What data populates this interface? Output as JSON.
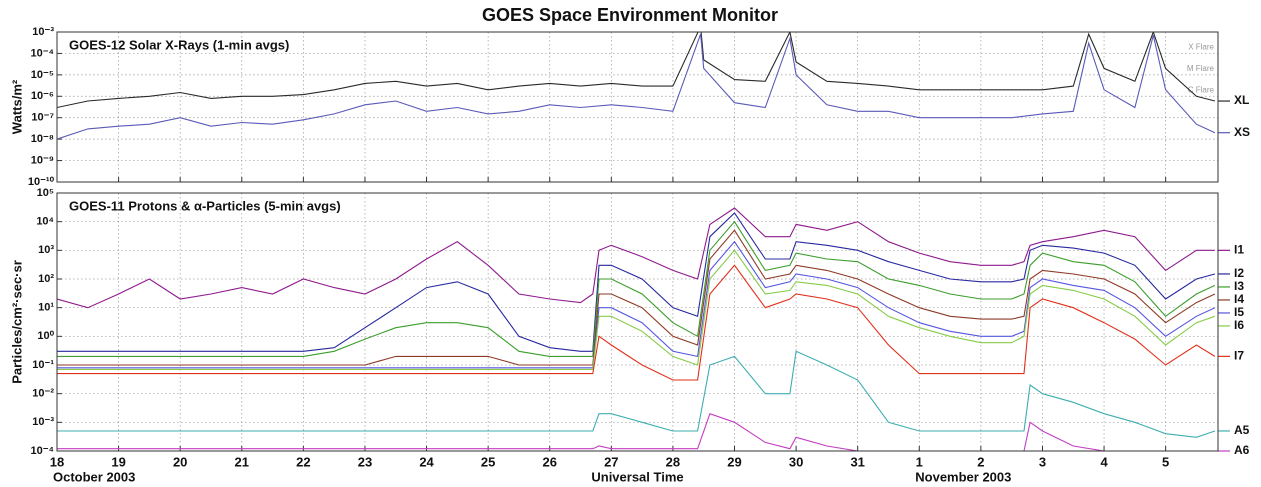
{
  "title": "GOES Space Environment Monitor",
  "chart_data": [
    {
      "type": "line",
      "subtitle": "GOES-12 Solar X-Rays (1-min avgs)",
      "ylabel": "Watts/m²",
      "yscale": "log",
      "grid": true,
      "xlim": [
        0,
        18.85
      ],
      "xticks": [
        0,
        1,
        2,
        3,
        4,
        5,
        6,
        7,
        8,
        9,
        10,
        11,
        12,
        13,
        14,
        15,
        16,
        17,
        18
      ],
      "ylim": [
        1e-10,
        0.001
      ],
      "yticks": [
        {
          "value": 0.001,
          "label": "10⁻³"
        },
        {
          "value": 0.0001,
          "label": "10⁻⁴"
        },
        {
          "value": 1e-05,
          "label": "10⁻⁵"
        },
        {
          "value": 1e-06,
          "label": "10⁻⁶"
        },
        {
          "value": 1e-07,
          "label": "10⁻⁷"
        },
        {
          "value": 1e-08,
          "label": "10⁻⁸"
        },
        {
          "value": 1e-09,
          "label": "10⁻⁹"
        },
        {
          "value": 1e-10,
          "label": "10⁻¹⁰"
        }
      ],
      "levels": [
        {
          "label": "X Flare",
          "value": 0.0001
        },
        {
          "label": "M Flare",
          "value": 1e-05
        },
        {
          "label": "C Flare",
          "value": 1e-06
        }
      ],
      "x": [
        0,
        0.5,
        1,
        1.5,
        2,
        2.5,
        3,
        3.5,
        4,
        4.5,
        5,
        5.5,
        6,
        6.5,
        7,
        7.5,
        8,
        8.5,
        9,
        9.5,
        10,
        10.45,
        10.5,
        11,
        11.5,
        11.9,
        12,
        12.5,
        13,
        13.5,
        14,
        14.5,
        15,
        15.5,
        16,
        16.5,
        16.75,
        17,
        17.5,
        17.8,
        18,
        18.5,
        18.8
      ],
      "series": [
        {
          "name": "XL",
          "color": "#2a2a2a",
          "values": [
            3e-07,
            6e-07,
            8e-07,
            1e-06,
            1.5e-06,
            8e-07,
            1e-06,
            1e-06,
            1.2e-06,
            2e-06,
            4e-06,
            5e-06,
            3e-06,
            4e-06,
            2e-06,
            3e-06,
            4e-06,
            3e-06,
            4e-06,
            3e-06,
            3e-06,
            0.0018,
            5e-05,
            6e-06,
            5e-06,
            0.001,
            4e-05,
            5e-06,
            4e-06,
            3e-06,
            2e-06,
            2e-06,
            2e-06,
            2e-06,
            2e-06,
            3e-06,
            0.0008,
            2e-05,
            5e-06,
            0.001,
            2e-05,
            1e-06,
            6e-07
          ]
        },
        {
          "name": "XS",
          "color": "#5a5ab8",
          "values": [
            1e-08,
            3e-08,
            4e-08,
            5e-08,
            1e-07,
            4e-08,
            6e-08,
            5e-08,
            8e-08,
            1.5e-07,
            4e-07,
            6e-07,
            2e-07,
            3e-07,
            1.5e-07,
            2e-07,
            4e-07,
            3e-07,
            4e-07,
            3e-07,
            2e-07,
            0.0008,
            2e-05,
            5e-07,
            3e-07,
            0.0005,
            1e-05,
            4e-07,
            2e-07,
            2e-07,
            1e-07,
            1e-07,
            1e-07,
            1e-07,
            1.5e-07,
            2e-07,
            0.0003,
            2e-06,
            3e-07,
            0.0007,
            2e-06,
            5e-08,
            2e-08
          ]
        }
      ]
    },
    {
      "type": "line",
      "subtitle": "GOES-11 Protons & α-Particles (5-min avgs)",
      "ylabel": "Particles/cm²·sec·sr",
      "xlabel": "Universal Time",
      "yscale": "log",
      "grid": true,
      "xlim": [
        0,
        18.85
      ],
      "xticks": [
        {
          "value": 0,
          "label": "18"
        },
        {
          "value": 1,
          "label": "19"
        },
        {
          "value": 2,
          "label": "20"
        },
        {
          "value": 3,
          "label": "21"
        },
        {
          "value": 4,
          "label": "22"
        },
        {
          "value": 5,
          "label": "23"
        },
        {
          "value": 6,
          "label": "24"
        },
        {
          "value": 7,
          "label": "25"
        },
        {
          "value": 8,
          "label": "26"
        },
        {
          "value": 9,
          "label": "27"
        },
        {
          "value": 10,
          "label": "28"
        },
        {
          "value": 11,
          "label": "29"
        },
        {
          "value": 12,
          "label": "30"
        },
        {
          "value": 13,
          "label": "31"
        },
        {
          "value": 14,
          "label": "1"
        },
        {
          "value": 15,
          "label": "2"
        },
        {
          "value": 16,
          "label": "3"
        },
        {
          "value": 17,
          "label": "4"
        },
        {
          "value": 18,
          "label": "5"
        }
      ],
      "x_groups": [
        {
          "label": "October 2003",
          "value": 0
        },
        {
          "label": "November 2003",
          "value": 14
        }
      ],
      "ylim": [
        0.0001,
        100000
      ],
      "yticks": [
        {
          "value": 100000,
          "label": "10⁵"
        },
        {
          "value": 10000,
          "label": "10⁴"
        },
        {
          "value": 1000,
          "label": "10³"
        },
        {
          "value": 100,
          "label": "10²"
        },
        {
          "value": 10,
          "label": "10¹"
        },
        {
          "value": 1,
          "label": "10⁰"
        },
        {
          "value": 0.1,
          "label": "10⁻¹"
        },
        {
          "value": 0.01,
          "label": "10⁻²"
        },
        {
          "value": 0.001,
          "label": "10⁻³"
        },
        {
          "value": 0.0001,
          "label": "10⁻⁴"
        }
      ],
      "x": [
        0,
        0.5,
        1,
        1.5,
        2,
        2.5,
        3,
        3.5,
        4,
        4.5,
        5,
        5.5,
        6,
        6.5,
        7,
        7.5,
        8,
        8.5,
        8.7,
        8.8,
        9,
        9.5,
        10,
        10.4,
        10.6,
        11,
        11.5,
        11.9,
        12,
        12.5,
        13,
        13.5,
        14,
        14.5,
        15,
        15.5,
        15.7,
        15.8,
        16,
        16.5,
        17,
        17.5,
        18,
        18.5,
        18.8
      ],
      "series": [
        {
          "name": "I1",
          "color": "#8e1a8e",
          "values": [
            20,
            10,
            30,
            100,
            20,
            30,
            50,
            30,
            100,
            50,
            30,
            100,
            500,
            2000,
            300,
            30,
            20,
            15,
            30,
            1000,
            1500,
            600,
            200,
            100,
            8000,
            30000,
            3000,
            3000,
            8000,
            5000,
            10000,
            2000,
            800,
            400,
            300,
            300,
            400,
            1500,
            2000,
            3000,
            5000,
            3000,
            200,
            1000,
            1000
          ]
        },
        {
          "name": "I2",
          "color": "#2828a0",
          "values": [
            0.3,
            0.3,
            0.3,
            0.3,
            0.3,
            0.3,
            0.3,
            0.3,
            0.3,
            0.4,
            2,
            10,
            50,
            80,
            30,
            1,
            0.4,
            0.3,
            0.3,
            300,
            300,
            100,
            10,
            5,
            3000,
            20000,
            500,
            500,
            2000,
            1500,
            1000,
            400,
            200,
            100,
            80,
            80,
            100,
            1000,
            1500,
            1200,
            800,
            300,
            20,
            100,
            150
          ]
        },
        {
          "name": "I3",
          "color": "#3c9e2c",
          "values": [
            0.2,
            0.2,
            0.2,
            0.2,
            0.2,
            0.2,
            0.2,
            0.2,
            0.2,
            0.3,
            0.8,
            2,
            3,
            3,
            2,
            0.3,
            0.2,
            0.2,
            0.2,
            100,
            100,
            30,
            3,
            1,
            1000,
            10000,
            200,
            300,
            800,
            500,
            400,
            100,
            60,
            30,
            20,
            20,
            30,
            300,
            800,
            400,
            300,
            80,
            5,
            30,
            60
          ]
        },
        {
          "name": "I4",
          "color": "#8e3a26",
          "values": [
            0.1,
            0.1,
            0.1,
            0.1,
            0.1,
            0.1,
            0.1,
            0.1,
            0.1,
            0.1,
            0.1,
            0.2,
            0.2,
            0.2,
            0.2,
            0.1,
            0.1,
            0.1,
            0.1,
            30,
            30,
            10,
            1,
            0.5,
            500,
            5000,
            100,
            150,
            300,
            200,
            100,
            30,
            10,
            5,
            4,
            4,
            5,
            100,
            200,
            150,
            100,
            30,
            3,
            15,
            30
          ]
        },
        {
          "name": "I5",
          "color": "#5656e0",
          "values": [
            0.08,
            0.08,
            0.08,
            0.08,
            0.08,
            0.08,
            0.08,
            0.08,
            0.08,
            0.08,
            0.08,
            0.08,
            0.08,
            0.08,
            0.08,
            0.08,
            0.08,
            0.08,
            0.08,
            10,
            10,
            3,
            0.3,
            0.2,
            200,
            2000,
            50,
            80,
            150,
            100,
            50,
            10,
            3,
            1.5,
            1,
            1,
            1.5,
            50,
            100,
            60,
            40,
            10,
            1,
            5,
            10
          ]
        },
        {
          "name": "I6",
          "color": "#86cc48",
          "values": [
            0.07,
            0.07,
            0.07,
            0.07,
            0.07,
            0.07,
            0.07,
            0.07,
            0.07,
            0.07,
            0.07,
            0.07,
            0.07,
            0.07,
            0.07,
            0.07,
            0.07,
            0.07,
            0.07,
            5,
            5,
            1.5,
            0.2,
            0.1,
            100,
            1000,
            30,
            40,
            80,
            60,
            30,
            5,
            2,
            1,
            0.6,
            0.6,
            1,
            30,
            60,
            40,
            20,
            5,
            0.5,
            3,
            5
          ]
        },
        {
          "name": "I7",
          "color": "#e0301a",
          "values": [
            0.05,
            0.05,
            0.05,
            0.05,
            0.05,
            0.05,
            0.05,
            0.05,
            0.05,
            0.05,
            0.05,
            0.05,
            0.05,
            0.05,
            0.05,
            0.05,
            0.05,
            0.05,
            0.05,
            1,
            0.5,
            0.1,
            0.03,
            0.03,
            30,
            300,
            10,
            20,
            30,
            20,
            10,
            0.5,
            0.05,
            0.05,
            0.05,
            0.05,
            0.05,
            10,
            20,
            10,
            3,
            0.8,
            0.1,
            0.5,
            0.2
          ]
        },
        {
          "name": "A5",
          "color": "#3eaeb0",
          "values": [
            0.0005,
            0.0005,
            0.0005,
            0.0005,
            0.0005,
            0.0005,
            0.0005,
            0.0005,
            0.0005,
            0.0005,
            0.0005,
            0.0005,
            0.0005,
            0.0005,
            0.0005,
            0.0005,
            0.0005,
            0.0005,
            0.0005,
            0.002,
            0.002,
            0.001,
            0.0005,
            0.0005,
            0.1,
            0.2,
            0.01,
            0.01,
            0.3,
            0.1,
            0.03,
            0.001,
            0.0005,
            0.0005,
            0.0005,
            0.0005,
            0.0005,
            0.02,
            0.01,
            0.005,
            0.002,
            0.001,
            0.0004,
            0.0003,
            0.0005
          ]
        },
        {
          "name": "A6",
          "color": "#c23ec2",
          "values": [
            0.00012,
            0.00012,
            0.00012,
            0.00012,
            0.00012,
            0.00012,
            0.00012,
            0.00012,
            0.00012,
            0.00012,
            0.00012,
            0.00012,
            0.00012,
            0.00012,
            0.00012,
            0.00012,
            0.00012,
            0.00012,
            0.00012,
            0.00015,
            0.00012,
            0.00012,
            0.00012,
            0.00012,
            0.002,
            0.001,
            0.0002,
            0.00012,
            0.0003,
            0.00015,
            0.0001,
            0.0001,
            0.0001,
            0.0001,
            0.0001,
            0.0001,
            0.0001,
            0.001,
            0.0005,
            0.00015,
            0.0001,
            0.0001,
            0.0001,
            0.0001,
            0.0001
          ]
        }
      ]
    }
  ]
}
